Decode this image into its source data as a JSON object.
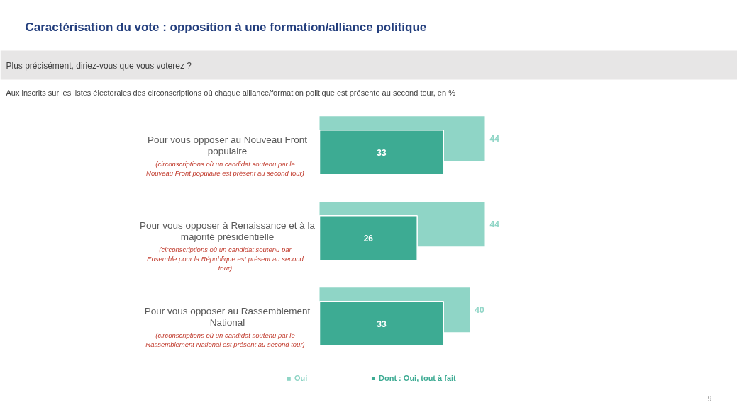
{
  "chart_data": {
    "type": "bar",
    "orientation": "horizontal",
    "title": "Caractérisation du vote : opposition à une formation/alliance politique",
    "subtitle": "Plus précisément, diriez-vous que vous voterez ?",
    "categories": [
      "Pour vous opposer au Nouveau Front populaire",
      "Pour vous opposer à Renaissance et à la majorité présidentielle",
      "Pour vous opposer au Rassemblement National"
    ],
    "series": [
      {
        "name": "Oui",
        "color": "#8fd5c6",
        "values": [
          44,
          44,
          40
        ]
      },
      {
        "name": "Dont : Oui, tout à fait",
        "color": "#3dab93",
        "values": [
          33,
          26,
          33
        ]
      }
    ],
    "data_labels": true,
    "legend": "bottom",
    "tick_labels": "y",
    "annotations": [
      "Aux inscrits sur les listes électorales des circonscriptions où chaque alliance/formation politique est présente au second tour, en %",
      "(circonscriptions où un candidat soutenu par le Nouveau Front populaire est présent au second tour)",
      "(circonscriptions où un candidat soutenu par Ensemble pour la République est présent au second tour)",
      "(circonscriptions où un candidat soutenu par le Rassemblement National est présent au second tour)",
      "9"
    ]
  }
}
